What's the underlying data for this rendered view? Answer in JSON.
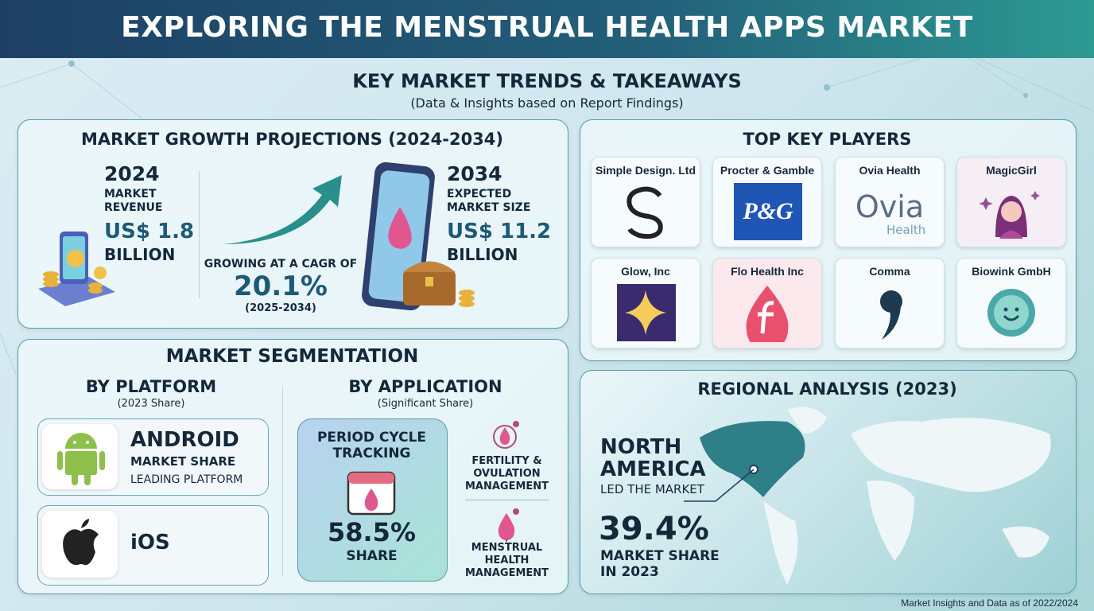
{
  "header": {
    "title": "EXPLORING THE MENSTRUAL HEALTH APPS MARKET"
  },
  "intro": {
    "title": "KEY MARKET TRENDS & TAKEAWAYS",
    "subtitle": "(Data & Insights based on Report Findings)"
  },
  "growth": {
    "title": "MARKET GROWTH PROJECTIONS (2024-2034)",
    "start": {
      "year": "2024",
      "label": "MARKET REVENUE",
      "value": "US$ 1.8",
      "unit": "BILLION"
    },
    "cagr": {
      "label": "GROWING AT A CAGR OF",
      "value": "20.1%",
      "period": "(2025-2034)"
    },
    "end": {
      "year": "2034",
      "label": "EXPECTED MARKET SIZE",
      "value": "US$ 11.2",
      "unit": "BILLION"
    }
  },
  "players": {
    "title": "TOP KEY PLAYERS",
    "items": [
      {
        "name": "Simple Design. Ltd"
      },
      {
        "name": "Procter & Gamble",
        "logo": "P&G"
      },
      {
        "name": "Ovia Health",
        "logo": "Ovia",
        "logo_sub": "Health"
      },
      {
        "name": "MagicGirl"
      },
      {
        "name": "Glow, Inc"
      },
      {
        "name": "Flo Health Inc"
      },
      {
        "name": "Comma"
      },
      {
        "name": "Biowink GmbH"
      }
    ]
  },
  "segmentation": {
    "title": "MARKET SEGMENTATION",
    "platform": {
      "title": "BY PLATFORM",
      "subtitle": "(2023 Share)",
      "items": [
        {
          "name": "ANDROID",
          "line1": "MARKET SHARE",
          "line2": "LEADING PLATFORM"
        },
        {
          "name": "iOS"
        }
      ]
    },
    "application": {
      "title": "BY APPLICATION",
      "subtitle": "(Significant Share)",
      "lead": {
        "name": "PERIOD CYCLE TRACKING",
        "value": "58.5%",
        "unit": "SHARE"
      },
      "others": [
        "FERTILITY & OVULATION MANAGEMENT",
        "MENSTRUAL HEALTH MANAGEMENT"
      ]
    }
  },
  "regional": {
    "title": "REGIONAL ANALYSIS (2023)",
    "region": "NORTH AMERICA",
    "note": "LED THE MARKET",
    "value": "39.4%",
    "label": "MARKET SHARE IN 2023"
  },
  "footer": {
    "note": "Market Insights and Data as of 2022/2024"
  }
}
